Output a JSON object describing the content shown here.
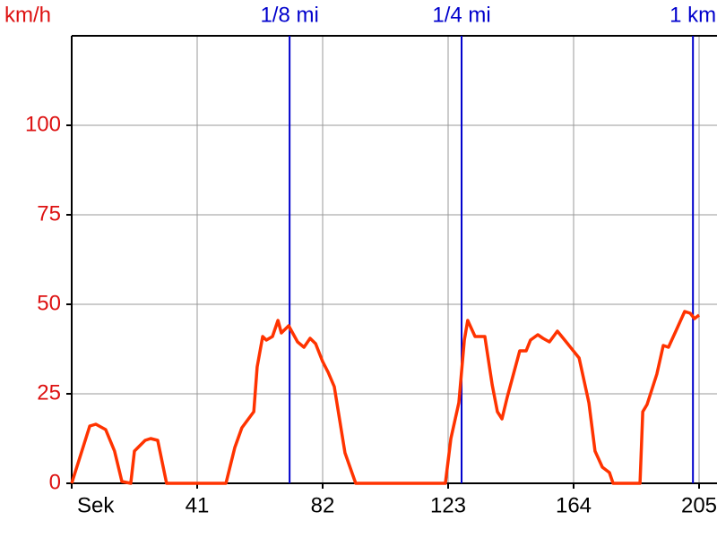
{
  "chart_data": {
    "type": "line",
    "y_label": "km/h",
    "xlim": [
      0,
      205
    ],
    "ylim": [
      0,
      125
    ],
    "xticks": [
      {
        "value": 0,
        "label": "Sek"
      },
      41,
      82,
      123,
      164,
      205
    ],
    "yticks": [
      0,
      25,
      50,
      75,
      100
    ],
    "grid": true,
    "markers": [
      {
        "label": "1/8 mi",
        "x": 71.2
      },
      {
        "label": "1/4 mi",
        "x": 127.4
      },
      {
        "label": "1 km",
        "x": 203
      }
    ],
    "marker_color": "#0000cc",
    "series": [
      {
        "color": "#ff3300",
        "x": [
          0,
          5.9,
          7.9,
          11.1,
          14,
          16.4,
          19.3,
          20.5,
          24,
          25.8,
          28.1,
          31,
          50.4,
          53.3,
          55.6,
          59.5,
          60.6,
          62.4,
          63.6,
          65.6,
          67.4,
          68.5,
          70.9,
          73.8,
          75.9,
          77.9,
          79.7,
          82,
          83.8,
          85.8,
          89.3,
          92.8,
          122.1,
          123.9,
          126.5,
          128.3,
          129.4,
          131.8,
          135,
          137.4,
          139.1,
          140.6,
          142.3,
          146.4,
          148.5,
          149.9,
          152.3,
          154,
          156.1,
          158.7,
          161.1,
          165.8,
          169,
          171,
          173.4,
          175.7,
          176.9,
          185.7,
          186.6,
          188,
          191.2,
          193.3,
          195,
          197.4,
          200.3,
          202.1,
          203.5,
          205
        ],
        "values": [
          0,
          16,
          16.5,
          15,
          9,
          0.5,
          0,
          9,
          12,
          12.5,
          12,
          0,
          0,
          10,
          15.5,
          20,
          32.5,
          41,
          40,
          41,
          45.5,
          42,
          44,
          39.5,
          38,
          40.5,
          39,
          34,
          31,
          27,
          8.5,
          0,
          0,
          12.5,
          22.5,
          40,
          45.5,
          41,
          41,
          27.5,
          20,
          18,
          24,
          37,
          37,
          40,
          41.5,
          40.5,
          39.5,
          42.5,
          40,
          35,
          22.5,
          9,
          4.5,
          3,
          0,
          0,
          20,
          22,
          30.5,
          38.5,
          38,
          42.5,
          48,
          47.5,
          46,
          47
        ]
      }
    ]
  }
}
